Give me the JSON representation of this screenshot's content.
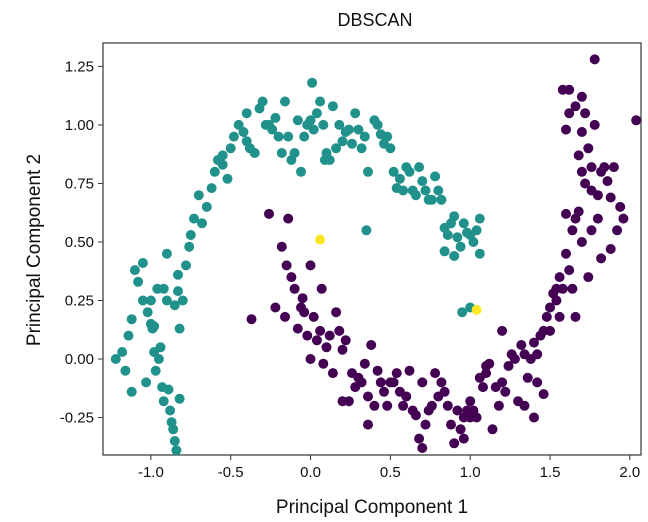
{
  "chart_data": {
    "type": "scatter",
    "title": "DBSCAN",
    "xlabel": "Principal Component 1",
    "ylabel": "Principal Component 2",
    "xlim": [
      -1.3,
      2.07
    ],
    "ylim": [
      -0.41,
      1.35
    ],
    "xticks": [
      -1.0,
      -0.5,
      0.0,
      0.5,
      1.0,
      1.5,
      2.0
    ],
    "yticks": [
      1.25,
      1.0,
      0.75,
      0.5,
      0.25,
      0.0,
      -0.25
    ],
    "xtick_labels": [
      "-1.0",
      "-0.5",
      "0.0",
      "0.5",
      "1.0",
      "1.5",
      "2.0"
    ],
    "ytick_labels": [
      "1.25",
      "1.00",
      "0.75",
      "0.50",
      "0.25",
      "0.00",
      "-0.25"
    ],
    "grid": false,
    "legend": "none",
    "series": [
      {
        "color": "#21918c",
        "points": [
          [
            -1.22,
            0.0
          ],
          [
            -1.18,
            0.03
          ],
          [
            -1.16,
            -0.05
          ],
          [
            -1.14,
            0.1
          ],
          [
            -1.12,
            0.17
          ],
          [
            -1.12,
            -0.14
          ],
          [
            -1.1,
            0.38
          ],
          [
            -1.08,
            0.33
          ],
          [
            -1.05,
            0.25
          ],
          [
            -1.05,
            0.41
          ],
          [
            -1.03,
            -0.1
          ],
          [
            -1.02,
            0.2
          ],
          [
            -1.0,
            0.25
          ],
          [
            -1.0,
            0.15
          ],
          [
            -0.99,
            0.13
          ],
          [
            -0.98,
            0.14
          ],
          [
            -0.97,
            -0.05
          ],
          [
            -0.98,
            0.03
          ],
          [
            -0.96,
            0.3
          ],
          [
            -0.95,
            -0.0
          ],
          [
            -0.94,
            0.05
          ],
          [
            -0.93,
            -0.12
          ],
          [
            -0.92,
            -0.18
          ],
          [
            -0.92,
            0.3
          ],
          [
            -0.9,
            0.45
          ],
          [
            -0.9,
            0.25
          ],
          [
            -0.89,
            -0.13
          ],
          [
            -0.88,
            -0.22
          ],
          [
            -0.87,
            -0.27
          ],
          [
            -0.86,
            -0.3
          ],
          [
            -0.85,
            -0.35
          ],
          [
            -0.84,
            -0.39
          ],
          [
            -0.85,
            0.23
          ],
          [
            -0.83,
            0.36
          ],
          [
            -0.83,
            0.29
          ],
          [
            -0.82,
            -0.17
          ],
          [
            -0.82,
            0.13
          ],
          [
            -0.8,
            0.25
          ],
          [
            -0.78,
            0.4
          ],
          [
            -0.76,
            0.48
          ],
          [
            -0.75,
            0.53
          ],
          [
            -0.73,
            0.6
          ],
          [
            -0.7,
            0.7
          ],
          [
            -0.68,
            0.58
          ],
          [
            -0.65,
            0.65
          ],
          [
            -0.62,
            0.73
          ],
          [
            -0.6,
            0.8
          ],
          [
            -0.58,
            0.85
          ],
          [
            -0.55,
            0.83
          ],
          [
            -0.55,
            0.87
          ],
          [
            -0.52,
            0.77
          ],
          [
            -0.5,
            0.9
          ],
          [
            -0.48,
            0.95
          ],
          [
            -0.45,
            1.0
          ],
          [
            -0.42,
            0.97
          ],
          [
            -0.4,
            1.05
          ],
          [
            -0.4,
            0.93
          ],
          [
            -0.38,
            0.9
          ],
          [
            -0.35,
            0.88
          ],
          [
            -0.32,
            1.07
          ],
          [
            -0.3,
            1.1
          ],
          [
            -0.28,
            1.0
          ],
          [
            -0.26,
            1.0
          ],
          [
            -0.24,
            0.98
          ],
          [
            -0.22,
            1.03
          ],
          [
            -0.2,
            0.95
          ],
          [
            -0.18,
            0.88
          ],
          [
            -0.16,
            1.1
          ],
          [
            -0.14,
            0.95
          ],
          [
            -0.12,
            0.85
          ],
          [
            -0.1,
            0.88
          ],
          [
            -0.08,
            1.02
          ],
          [
            -0.06,
            0.8
          ],
          [
            -0.04,
            0.95
          ],
          [
            -0.02,
            1.0
          ],
          [
            0.0,
            1.02
          ],
          [
            0.01,
            1.18
          ],
          [
            0.02,
            0.98
          ],
          [
            0.04,
            1.05
          ],
          [
            0.06,
            1.1
          ],
          [
            0.08,
            1.0
          ],
          [
            0.09,
            0.85
          ],
          [
            0.1,
            0.88
          ],
          [
            0.12,
            0.85
          ],
          [
            0.14,
            1.08
          ],
          [
            0.16,
            0.9
          ],
          [
            0.18,
            1.0
          ],
          [
            0.2,
            0.93
          ],
          [
            0.22,
            0.97
          ],
          [
            0.24,
            0.98
          ],
          [
            0.26,
            0.92
          ],
          [
            0.28,
            1.05
          ],
          [
            0.3,
            0.98
          ],
          [
            0.32,
            0.9
          ],
          [
            0.34,
            0.95
          ],
          [
            0.36,
            0.8
          ],
          [
            0.4,
            1.02
          ],
          [
            0.42,
            1.0
          ],
          [
            0.44,
            0.96
          ],
          [
            0.46,
            0.92
          ],
          [
            0.48,
            0.95
          ],
          [
            0.5,
            0.9
          ],
          [
            0.52,
            0.8
          ],
          [
            0.54,
            0.73
          ],
          [
            0.56,
            0.77
          ],
          [
            0.58,
            0.72
          ],
          [
            0.6,
            0.82
          ],
          [
            0.62,
            0.8
          ],
          [
            0.64,
            0.72
          ],
          [
            0.66,
            0.7
          ],
          [
            0.68,
            0.82
          ],
          [
            0.7,
            0.76
          ],
          [
            0.72,
            0.72
          ],
          [
            0.74,
            0.68
          ],
          [
            0.76,
            0.68
          ],
          [
            0.78,
            0.78
          ],
          [
            0.8,
            0.72
          ],
          [
            0.82,
            0.68
          ],
          [
            0.84,
            0.56
          ],
          [
            0.86,
            0.53
          ],
          [
            0.88,
            0.58
          ],
          [
            0.9,
            0.61
          ],
          [
            0.92,
            0.52
          ],
          [
            0.94,
            0.48
          ],
          [
            0.96,
            0.58
          ],
          [
            0.98,
            0.54
          ],
          [
            1.0,
            0.53
          ],
          [
            1.02,
            0.5
          ],
          [
            1.04,
            0.55
          ],
          [
            1.06,
            0.45
          ],
          [
            0.9,
            0.44
          ],
          [
            0.84,
            0.46
          ],
          [
            0.95,
            0.2
          ],
          [
            1.0,
            0.22
          ],
          [
            1.06,
            0.6
          ],
          [
            0.35,
            0.55
          ]
        ]
      },
      {
        "color": "#440154",
        "points": [
          [
            -0.37,
            0.17
          ],
          [
            -0.26,
            0.62
          ],
          [
            -0.22,
            0.22
          ],
          [
            -0.18,
            0.48
          ],
          [
            -0.16,
            0.18
          ],
          [
            -0.15,
            0.4
          ],
          [
            -0.14,
            0.6
          ],
          [
            -0.12,
            0.35
          ],
          [
            -0.1,
            0.3
          ],
          [
            -0.08,
            0.13
          ],
          [
            -0.06,
            0.22
          ],
          [
            -0.05,
            0.26
          ],
          [
            -0.04,
            0.2
          ],
          [
            -0.02,
            0.1
          ],
          [
            0.0,
            0.4
          ],
          [
            0.0,
            0.0
          ],
          [
            0.02,
            0.18
          ],
          [
            0.04,
            0.08
          ],
          [
            0.06,
            0.12
          ],
          [
            0.07,
            0.3
          ],
          [
            0.08,
            -0.02
          ],
          [
            0.1,
            0.05
          ],
          [
            0.12,
            0.1
          ],
          [
            0.14,
            -0.06
          ],
          [
            0.16,
            0.2
          ],
          [
            0.18,
            0.12
          ],
          [
            0.2,
            0.04
          ],
          [
            0.22,
            0.08
          ],
          [
            0.24,
            -0.18
          ],
          [
            0.26,
            -0.06
          ],
          [
            0.28,
            -0.12
          ],
          [
            0.3,
            -0.08
          ],
          [
            0.32,
            -0.1
          ],
          [
            0.34,
            -0.02
          ],
          [
            0.36,
            -0.16
          ],
          [
            0.38,
            0.06
          ],
          [
            0.4,
            -0.2
          ],
          [
            0.42,
            -0.05
          ],
          [
            0.44,
            -0.1
          ],
          [
            0.46,
            -0.14
          ],
          [
            0.48,
            -0.2
          ],
          [
            0.5,
            -0.1
          ],
          [
            0.52,
            -0.1
          ],
          [
            0.54,
            -0.06
          ],
          [
            0.56,
            -0.14
          ],
          [
            0.58,
            -0.2
          ],
          [
            0.6,
            -0.16
          ],
          [
            0.62,
            -0.05
          ],
          [
            0.64,
            -0.22
          ],
          [
            0.66,
            -0.24
          ],
          [
            0.68,
            -0.34
          ],
          [
            0.7,
            -0.1
          ],
          [
            0.72,
            -0.28
          ],
          [
            0.74,
            -0.22
          ],
          [
            0.76,
            -0.2
          ],
          [
            0.78,
            -0.06
          ],
          [
            0.8,
            -0.16
          ],
          [
            0.82,
            -0.1
          ],
          [
            0.84,
            -0.14
          ],
          [
            0.86,
            -0.2
          ],
          [
            0.88,
            -0.28
          ],
          [
            0.9,
            -0.36
          ],
          [
            0.92,
            -0.22
          ],
          [
            0.94,
            -0.3
          ],
          [
            0.96,
            -0.25
          ],
          [
            0.98,
            -0.22
          ],
          [
            1.0,
            -0.18
          ],
          [
            1.02,
            -0.22
          ],
          [
            1.04,
            -0.25
          ],
          [
            1.06,
            -0.08
          ],
          [
            1.08,
            -0.12
          ],
          [
            1.1,
            -0.06
          ],
          [
            1.12,
            -0.02
          ],
          [
            1.14,
            -0.3
          ],
          [
            1.16,
            -0.12
          ],
          [
            1.18,
            -0.2
          ],
          [
            1.2,
            -0.1
          ],
          [
            1.22,
            -0.14
          ],
          [
            1.24,
            -0.03
          ],
          [
            1.26,
            0.02
          ],
          [
            1.28,
            0.0
          ],
          [
            1.3,
            -0.18
          ],
          [
            1.32,
            0.06
          ],
          [
            1.34,
            0.02
          ],
          [
            1.36,
            -0.08
          ],
          [
            1.38,
            0.0
          ],
          [
            1.4,
            0.07
          ],
          [
            1.42,
            0.02
          ],
          [
            1.44,
            0.1
          ],
          [
            1.46,
            0.12
          ],
          [
            1.48,
            0.18
          ],
          [
            1.5,
            0.22
          ],
          [
            1.52,
            0.28
          ],
          [
            1.54,
            0.25
          ],
          [
            1.56,
            0.35
          ],
          [
            1.58,
            0.3
          ],
          [
            1.6,
            0.45
          ],
          [
            1.62,
            0.38
          ],
          [
            1.64,
            0.55
          ],
          [
            1.66,
            0.6
          ],
          [
            1.68,
            0.63
          ],
          [
            1.7,
            0.8
          ],
          [
            1.72,
            0.75
          ],
          [
            1.74,
            0.9
          ],
          [
            1.76,
            0.82
          ],
          [
            1.78,
            1.28
          ],
          [
            1.8,
            0.7
          ],
          [
            1.82,
            0.8
          ],
          [
            1.84,
            0.82
          ],
          [
            1.86,
            0.76
          ],
          [
            1.88,
            0.69
          ],
          [
            1.9,
            0.82
          ],
          [
            1.92,
            0.55
          ],
          [
            1.94,
            0.65
          ],
          [
            1.96,
            0.6
          ],
          [
            2.04,
            1.02
          ],
          [
            1.88,
            0.47
          ],
          [
            1.58,
            1.15
          ],
          [
            1.62,
            1.05
          ],
          [
            1.66,
            1.08
          ],
          [
            1.7,
            0.97
          ],
          [
            1.68,
            0.87
          ],
          [
            1.72,
            1.05
          ],
          [
            1.6,
            0.98
          ],
          [
            1.76,
            0.72
          ],
          [
            1.6,
            0.62
          ],
          [
            1.56,
            0.18
          ],
          [
            1.5,
            0.12
          ],
          [
            1.46,
            -0.15
          ],
          [
            1.42,
            -0.1
          ],
          [
            1.34,
            -0.2
          ],
          [
            1.2,
            0.12
          ],
          [
            1.1,
            -0.03
          ],
          [
            1.0,
            -0.25
          ],
          [
            0.7,
            -0.38
          ],
          [
            0.36,
            -0.28
          ],
          [
            0.2,
            -0.18
          ],
          [
            0.96,
            -0.34
          ],
          [
            1.4,
            -0.25
          ],
          [
            1.7,
            0.5
          ],
          [
            1.8,
            0.6
          ],
          [
            1.66,
            0.18
          ],
          [
            1.54,
            0.3
          ],
          [
            1.74,
            0.35
          ],
          [
            1.82,
            0.43
          ],
          [
            1.78,
            1.0
          ],
          [
            1.62,
            1.15
          ],
          [
            1.7,
            1.12
          ],
          [
            1.76,
            0.55
          ],
          [
            1.64,
            0.3
          ]
        ]
      },
      {
        "color": "#fde725",
        "points": [
          [
            0.06,
            0.51
          ],
          [
            1.04,
            0.21
          ]
        ]
      }
    ]
  }
}
